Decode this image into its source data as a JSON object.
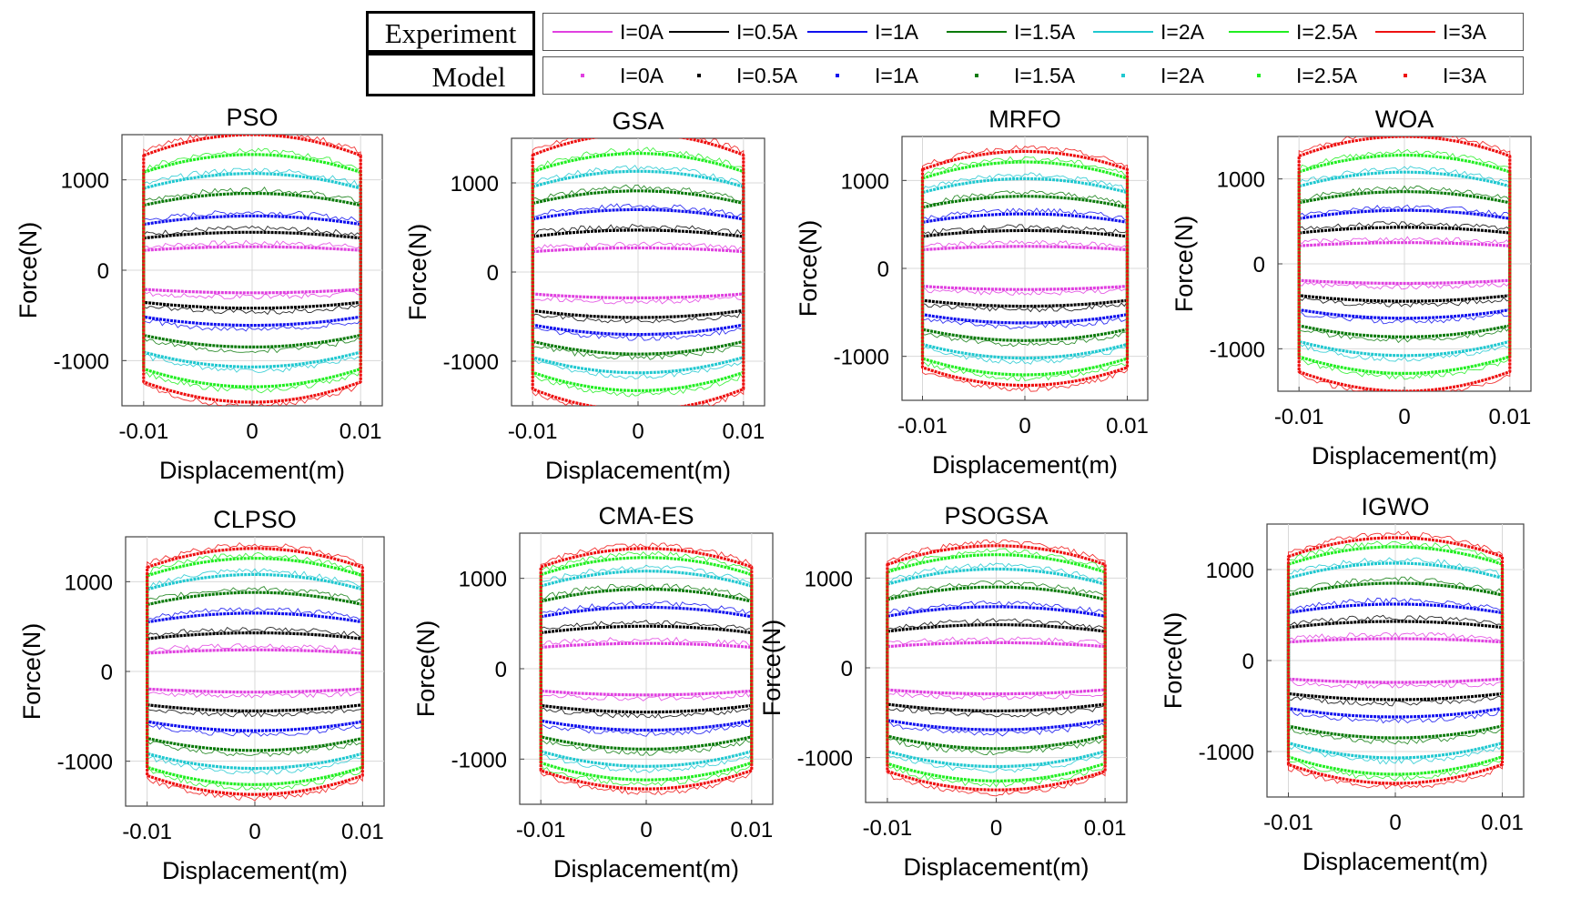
{
  "legend": {
    "experiment_label": "Experiment",
    "model_label": "Model",
    "entries": [
      {
        "label": "I=0A",
        "color": "#e040e0"
      },
      {
        "label": "I=0.5A",
        "color": "#000000"
      },
      {
        "label": "I=1A",
        "color": "#1010ee"
      },
      {
        "label": "I=1.5A",
        "color": "#0a7a0a"
      },
      {
        "label": "I=2A",
        "color": "#20c8d0"
      },
      {
        "label": "I=2.5A",
        "color": "#22ee22"
      },
      {
        "label": "I=3A",
        "color": "#ee1111"
      }
    ]
  },
  "chart_data": [
    {
      "type": "line",
      "title": "PSO",
      "xlabel": "Displacement(m)",
      "ylabel": "Force(N)",
      "xlim": [
        -0.012,
        0.012
      ],
      "ylim": [
        -1500,
        1500
      ],
      "xticks": [
        "-0.01",
        "0",
        "0.01"
      ],
      "yticks": [
        "1000",
        "0",
        "-1000"
      ],
      "xtick_values": [
        -0.01,
        0,
        0.01
      ],
      "ytick_values": [
        1000,
        0,
        -1000
      ],
      "series": [
        {
          "name": "I=0A",
          "peak": 260,
          "bottom": -250
        },
        {
          "name": "I=0.5A",
          "peak": 420,
          "bottom": -420
        },
        {
          "name": "I=1A",
          "peak": 600,
          "bottom": -610
        },
        {
          "name": "I=1.5A",
          "peak": 850,
          "bottom": -850
        },
        {
          "name": "I=2A",
          "peak": 1070,
          "bottom": -1070
        },
        {
          "name": "I=2.5A",
          "peak": 1280,
          "bottom": -1290
        },
        {
          "name": "I=3A",
          "peak": 1500,
          "bottom": -1460
        }
      ]
    },
    {
      "type": "line",
      "title": "GSA",
      "xlabel": "Displacement(m)",
      "ylabel": "Force(N)",
      "xlim": [
        -0.012,
        0.012
      ],
      "ylim": [
        -1500,
        1500
      ],
      "xticks": [
        "-0.01",
        "0",
        "0.01"
      ],
      "yticks": [
        "1000",
        "0",
        "-1000"
      ],
      "xtick_values": [
        -0.01,
        0,
        0.01
      ],
      "ytick_values": [
        1000,
        0,
        -1000
      ],
      "series": [
        {
          "name": "I=0A",
          "peak": 270,
          "bottom": -290
        },
        {
          "name": "I=0.5A",
          "peak": 470,
          "bottom": -510
        },
        {
          "name": "I=1A",
          "peak": 700,
          "bottom": -700
        },
        {
          "name": "I=1.5A",
          "peak": 910,
          "bottom": -920
        },
        {
          "name": "I=2A",
          "peak": 1130,
          "bottom": -1130
        },
        {
          "name": "I=2.5A",
          "peak": 1330,
          "bottom": -1330
        },
        {
          "name": "I=3A",
          "peak": 1550,
          "bottom": -1550
        }
      ]
    },
    {
      "type": "line",
      "title": "MRFO",
      "xlabel": "Displacement(m)",
      "ylabel": "Force(N)",
      "xlim": [
        -0.012,
        0.012
      ],
      "ylim": [
        -1500,
        1500
      ],
      "xticks": [
        "-0.01",
        "0",
        "0.01"
      ],
      "yticks": [
        "1000",
        "0",
        "-1000"
      ],
      "xtick_values": [
        -0.01,
        0,
        0.01
      ],
      "ytick_values": [
        1000,
        0,
        -1000
      ],
      "series": [
        {
          "name": "I=0A",
          "peak": 250,
          "bottom": -240
        },
        {
          "name": "I=0.5A",
          "peak": 430,
          "bottom": -430
        },
        {
          "name": "I=1A",
          "peak": 620,
          "bottom": -620
        },
        {
          "name": "I=1.5A",
          "peak": 820,
          "bottom": -820
        },
        {
          "name": "I=2A",
          "peak": 1020,
          "bottom": -1020
        },
        {
          "name": "I=2.5A",
          "peak": 1210,
          "bottom": -1210
        },
        {
          "name": "I=3A",
          "peak": 1330,
          "bottom": -1330
        }
      ]
    },
    {
      "type": "line",
      "title": "WOA",
      "xlabel": "Displacement(m)",
      "ylabel": "Force(N)",
      "xlim": [
        -0.012,
        0.012
      ],
      "ylim": [
        -1500,
        1500
      ],
      "xticks": [
        "-0.01",
        "0",
        "0.01"
      ],
      "yticks": [
        "1000",
        "0",
        "-1000"
      ],
      "xtick_values": [
        -0.01,
        0,
        0.01
      ],
      "ytick_values": [
        1000,
        0,
        -1000
      ],
      "series": [
        {
          "name": "I=0A",
          "peak": 250,
          "bottom": -230
        },
        {
          "name": "I=0.5A",
          "peak": 430,
          "bottom": -440
        },
        {
          "name": "I=1A",
          "peak": 630,
          "bottom": -640
        },
        {
          "name": "I=1.5A",
          "peak": 850,
          "bottom": -860
        },
        {
          "name": "I=2A",
          "peak": 1080,
          "bottom": -1080
        },
        {
          "name": "I=2.5A",
          "peak": 1280,
          "bottom": -1290
        },
        {
          "name": "I=3A",
          "peak": 1500,
          "bottom": -1500
        }
      ]
    },
    {
      "type": "line",
      "title": "CLPSO",
      "xlabel": "Displacement(m)",
      "ylabel": "Force(N)",
      "xlim": [
        -0.012,
        0.012
      ],
      "ylim": [
        -1500,
        1500
      ],
      "xticks": [
        "-0.01",
        "0",
        "0.01"
      ],
      "yticks": [
        "1000",
        "0",
        "-1000"
      ],
      "xtick_values": [
        -0.01,
        0,
        0.01
      ],
      "ytick_values": [
        1000,
        0,
        -1000
      ],
      "series": [
        {
          "name": "I=0A",
          "peak": 240,
          "bottom": -230
        },
        {
          "name": "I=0.5A",
          "peak": 430,
          "bottom": -440
        },
        {
          "name": "I=1A",
          "peak": 650,
          "bottom": -660
        },
        {
          "name": "I=1.5A",
          "peak": 880,
          "bottom": -880
        },
        {
          "name": "I=2A",
          "peak": 1080,
          "bottom": -1080
        },
        {
          "name": "I=2.5A",
          "peak": 1260,
          "bottom": -1260
        },
        {
          "name": "I=3A",
          "peak": 1370,
          "bottom": -1370
        }
      ]
    },
    {
      "type": "line",
      "title": "CMA-ES",
      "xlabel": "Displacement(m)",
      "ylabel": "Force(N)",
      "xlim": [
        -0.012,
        0.012
      ],
      "ylim": [
        -1500,
        1500
      ],
      "xticks": [
        "-0.01",
        "0",
        "0.01"
      ],
      "yticks": [
        "1000",
        "0",
        "-1000"
      ],
      "xtick_values": [
        -0.01,
        0,
        0.01
      ],
      "ytick_values": [
        1000,
        0,
        -1000
      ],
      "series": [
        {
          "name": "I=0A",
          "peak": 280,
          "bottom": -290
        },
        {
          "name": "I=0.5A",
          "peak": 470,
          "bottom": -480
        },
        {
          "name": "I=1A",
          "peak": 680,
          "bottom": -680
        },
        {
          "name": "I=1.5A",
          "peak": 880,
          "bottom": -890
        },
        {
          "name": "I=2A",
          "peak": 1080,
          "bottom": -1080
        },
        {
          "name": "I=2.5A",
          "peak": 1230,
          "bottom": -1230
        },
        {
          "name": "I=3A",
          "peak": 1330,
          "bottom": -1330
        }
      ]
    },
    {
      "type": "line",
      "title": "PSOGSA",
      "xlabel": "Displacement(m)",
      "ylabel": "Force(N)",
      "xlim": [
        -0.012,
        0.012
      ],
      "ylim": [
        -1500,
        1500
      ],
      "xticks": [
        "-0.01",
        "0",
        "0.01"
      ],
      "yticks": [
        "1000",
        "0",
        "-1000"
      ],
      "xtick_values": [
        -0.01,
        0,
        0.01
      ],
      "ytick_values": [
        1000,
        0,
        -1000
      ],
      "series": [
        {
          "name": "I=0A",
          "peak": 280,
          "bottom": -290
        },
        {
          "name": "I=0.5A",
          "peak": 480,
          "bottom": -480
        },
        {
          "name": "I=1A",
          "peak": 680,
          "bottom": -690
        },
        {
          "name": "I=1.5A",
          "peak": 900,
          "bottom": -900
        },
        {
          "name": "I=2A",
          "peak": 1100,
          "bottom": -1100
        },
        {
          "name": "I=2.5A",
          "peak": 1260,
          "bottom": -1260
        },
        {
          "name": "I=3A",
          "peak": 1360,
          "bottom": -1360
        }
      ]
    },
    {
      "type": "line",
      "title": "IGWO",
      "xlabel": "Displacement(m)",
      "ylabel": "Force(N)",
      "xlim": [
        -0.012,
        0.012
      ],
      "ylim": [
        -1500,
        1500
      ],
      "xticks": [
        "-0.01",
        "0",
        "0.01"
      ],
      "yticks": [
        "1000",
        "0",
        "-1000"
      ],
      "xtick_values": [
        -0.01,
        0,
        0.01
      ],
      "ytick_values": [
        1000,
        0,
        -1000
      ],
      "series": [
        {
          "name": "I=0A",
          "peak": 240,
          "bottom": -240
        },
        {
          "name": "I=0.5A",
          "peak": 430,
          "bottom": -430
        },
        {
          "name": "I=1A",
          "peak": 620,
          "bottom": -620
        },
        {
          "name": "I=1.5A",
          "peak": 850,
          "bottom": -850
        },
        {
          "name": "I=2A",
          "peak": 1070,
          "bottom": -1070
        },
        {
          "name": "I=2.5A",
          "peak": 1250,
          "bottom": -1250
        },
        {
          "name": "I=3A",
          "peak": 1350,
          "bottom": -1350
        }
      ]
    }
  ]
}
